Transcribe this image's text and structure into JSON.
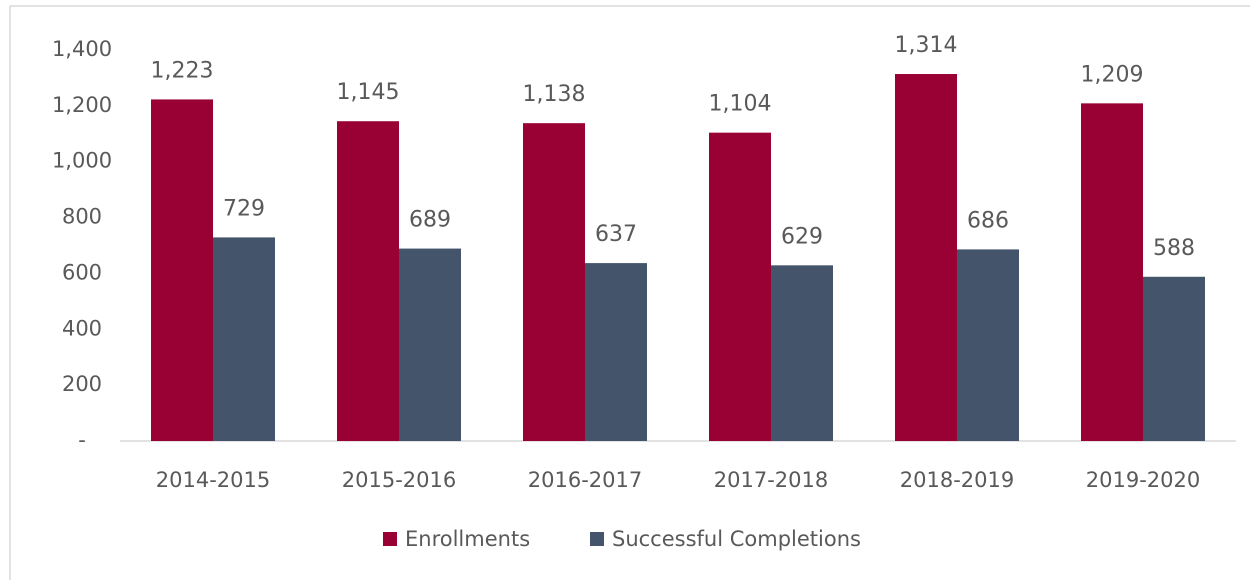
{
  "chart_data": {
    "type": "bar",
    "categories": [
      "2014-2015",
      "2015-2016",
      "2016-2017",
      "2017-2018",
      "2018-2019",
      "2019-2020"
    ],
    "series": [
      {
        "name": "Enrollments",
        "color": "#990033",
        "values": [
          1223,
          1145,
          1138,
          1104,
          1314,
          1209
        ],
        "value_labels": [
          "1,223",
          "1,145",
          "1,138",
          "1,104",
          "1,314",
          "1,209"
        ]
      },
      {
        "name": "Successful Completions",
        "color": "#44546a",
        "values": [
          729,
          689,
          637,
          629,
          686,
          588
        ],
        "value_labels": [
          "729",
          "689",
          "637",
          "629",
          "686",
          "588"
        ]
      }
    ],
    "ylim": [
      0,
      1400
    ],
    "yticks": [
      {
        "value": 0,
        "label": "-"
      },
      200,
      400,
      600,
      800,
      {
        "value": 1000,
        "label": "1,000"
      },
      {
        "value": 1200,
        "label": "1,200"
      },
      {
        "value": 1400,
        "label": "1,400"
      }
    ],
    "grid": false,
    "legend": "bottom"
  }
}
